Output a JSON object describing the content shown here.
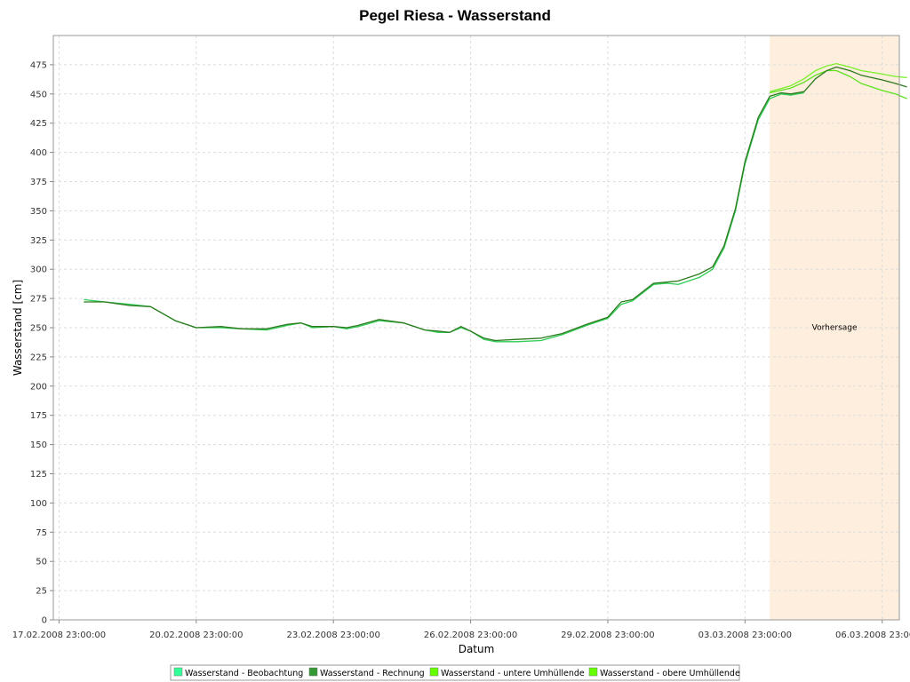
{
  "chart_data": {
    "type": "line",
    "title": "Pegel Riesa - Wasserstand",
    "xlabel": "Datum",
    "ylabel": "Wasserstand [cm]",
    "ylim": [
      0,
      500
    ],
    "yticks": [
      0,
      25,
      50,
      75,
      100,
      125,
      150,
      175,
      200,
      225,
      250,
      275,
      300,
      325,
      350,
      375,
      400,
      425,
      450,
      475
    ],
    "xlim": [
      "2008-02-17T20:00",
      "2008-03-07T08:00"
    ],
    "xticks": [
      {
        "t": "2008-02-17T23:00",
        "label": "17.02.2008 23:00:00"
      },
      {
        "t": "2008-02-20T23:00",
        "label": "20.02.2008 23:00:00"
      },
      {
        "t": "2008-02-23T23:00",
        "label": "23.02.2008 23:00:00"
      },
      {
        "t": "2008-02-26T23:00",
        "label": "26.02.2008 23:00:00"
      },
      {
        "t": "2008-02-29T23:00",
        "label": "29.02.2008 23:00:00"
      },
      {
        "t": "2008-03-03T23:00",
        "label": "03.03.2008 23:00:00"
      },
      {
        "t": "2008-03-06T23:00",
        "label": "06.03.2008 23:00:00"
      }
    ],
    "grid": true,
    "legend_position": "bottom",
    "forecast_band": {
      "start": "2008-03-04T12:00",
      "end": "2008-03-07T12:00",
      "label": "Vorhersage",
      "color": "#fdeedd"
    },
    "series": [
      {
        "name": "Wasserstand - Beobachtung",
        "color": "#33ff99",
        "line_color": "#2ecc55",
        "points": [
          [
            "2008-02-18T12:00",
            274
          ],
          [
            "2008-02-18T23:00",
            272
          ],
          [
            "2008-02-19T12:00",
            270
          ],
          [
            "2008-02-19T23:00",
            268
          ],
          [
            "2008-02-20T12:00",
            256
          ],
          [
            "2008-02-20T23:00",
            250
          ],
          [
            "2008-02-21T12:00",
            250
          ],
          [
            "2008-02-21T23:00",
            249
          ],
          [
            "2008-02-22T12:00",
            248
          ],
          [
            "2008-02-22T23:00",
            252
          ],
          [
            "2008-02-23T06:00",
            254
          ],
          [
            "2008-02-23T12:00",
            250
          ],
          [
            "2008-02-23T23:00",
            251
          ],
          [
            "2008-02-24T06:00",
            249
          ],
          [
            "2008-02-24T12:00",
            251
          ],
          [
            "2008-02-24T23:00",
            256
          ],
          [
            "2008-02-25T12:00",
            254
          ],
          [
            "2008-02-25T23:00",
            248
          ],
          [
            "2008-02-26T06:00",
            246
          ],
          [
            "2008-02-26T12:00",
            246
          ],
          [
            "2008-02-26T18:00",
            250
          ],
          [
            "2008-02-26T23:00",
            247
          ],
          [
            "2008-02-27T06:00",
            240
          ],
          [
            "2008-02-27T12:00",
            238
          ],
          [
            "2008-02-27T23:00",
            238
          ],
          [
            "2008-02-28T12:00",
            239
          ],
          [
            "2008-02-28T23:00",
            244
          ],
          [
            "2008-02-29T12:00",
            252
          ],
          [
            "2008-02-29T23:00",
            258
          ],
          [
            "2008-03-01T06:00",
            270
          ],
          [
            "2008-03-01T12:00",
            273
          ],
          [
            "2008-03-01T23:00",
            287
          ],
          [
            "2008-03-02T06:00",
            288
          ],
          [
            "2008-03-02T12:00",
            287
          ],
          [
            "2008-03-02T23:00",
            293
          ],
          [
            "2008-03-03T06:00",
            300
          ],
          [
            "2008-03-03T12:00",
            318
          ],
          [
            "2008-03-03T18:00",
            350
          ],
          [
            "2008-03-03T23:00",
            390
          ],
          [
            "2008-03-04T06:00",
            428
          ],
          [
            "2008-03-04T12:00",
            446
          ],
          [
            "2008-03-04T18:00",
            450
          ],
          [
            "2008-03-04T23:00",
            449
          ],
          [
            "2008-03-05T06:00",
            451
          ]
        ]
      },
      {
        "name": "Wasserstand - Rechnung",
        "color": "#339933",
        "line_color": "#2d7a1e",
        "points": [
          [
            "2008-02-18T12:00",
            272
          ],
          [
            "2008-02-18T23:00",
            272
          ],
          [
            "2008-02-19T12:00",
            269
          ],
          [
            "2008-02-19T23:00",
            268
          ],
          [
            "2008-02-20T12:00",
            256
          ],
          [
            "2008-02-20T23:00",
            250
          ],
          [
            "2008-02-21T12:00",
            251
          ],
          [
            "2008-02-21T23:00",
            249
          ],
          [
            "2008-02-22T12:00",
            249
          ],
          [
            "2008-02-22T23:00",
            253
          ],
          [
            "2008-02-23T06:00",
            254
          ],
          [
            "2008-02-23T12:00",
            251
          ],
          [
            "2008-02-23T23:00",
            251
          ],
          [
            "2008-02-24T06:00",
            250
          ],
          [
            "2008-02-24T12:00",
            252
          ],
          [
            "2008-02-24T23:00",
            257
          ],
          [
            "2008-02-25T12:00",
            254
          ],
          [
            "2008-02-25T23:00",
            248
          ],
          [
            "2008-02-26T06:00",
            247
          ],
          [
            "2008-02-26T12:00",
            246
          ],
          [
            "2008-02-26T18:00",
            251
          ],
          [
            "2008-02-26T23:00",
            247
          ],
          [
            "2008-02-27T06:00",
            241
          ],
          [
            "2008-02-27T12:00",
            239
          ],
          [
            "2008-02-27T23:00",
            240
          ],
          [
            "2008-02-28T12:00",
            241
          ],
          [
            "2008-02-28T23:00",
            245
          ],
          [
            "2008-02-29T12:00",
            253
          ],
          [
            "2008-02-29T23:00",
            259
          ],
          [
            "2008-03-01T06:00",
            272
          ],
          [
            "2008-03-01T12:00",
            274
          ],
          [
            "2008-03-01T23:00",
            288
          ],
          [
            "2008-03-02T06:00",
            289
          ],
          [
            "2008-03-02T12:00",
            290
          ],
          [
            "2008-03-02T23:00",
            296
          ],
          [
            "2008-03-03T06:00",
            302
          ],
          [
            "2008-03-03T12:00",
            320
          ],
          [
            "2008-03-03T18:00",
            352
          ],
          [
            "2008-03-03T23:00",
            392
          ],
          [
            "2008-03-04T06:00",
            430
          ],
          [
            "2008-03-04T12:00",
            448
          ],
          [
            "2008-03-04T18:00",
            451
          ],
          [
            "2008-03-04T23:00",
            450
          ],
          [
            "2008-03-05T06:00",
            452
          ],
          [
            "2008-03-05T12:00",
            463
          ],
          [
            "2008-03-05T18:00",
            470
          ],
          [
            "2008-03-05T23:00",
            473
          ],
          [
            "2008-03-06T06:00",
            470
          ],
          [
            "2008-03-06T12:00",
            466
          ],
          [
            "2008-03-06T23:00",
            462
          ],
          [
            "2008-03-07T06:00",
            459
          ],
          [
            "2008-03-07T12:00",
            456
          ]
        ]
      },
      {
        "name": "Wasserstand - untere Umhüllende",
        "color": "#66ff00",
        "line_color": "#5fe020",
        "points": [
          [
            "2008-03-04T12:00",
            451
          ],
          [
            "2008-03-04T23:00",
            455
          ],
          [
            "2008-03-05T06:00",
            460
          ],
          [
            "2008-03-05T12:00",
            466
          ],
          [
            "2008-03-05T18:00",
            470
          ],
          [
            "2008-03-05T23:00",
            470
          ],
          [
            "2008-03-06T06:00",
            465
          ],
          [
            "2008-03-06T12:00",
            459
          ],
          [
            "2008-03-06T23:00",
            453
          ],
          [
            "2008-03-07T06:00",
            450
          ],
          [
            "2008-03-07T12:00",
            446
          ]
        ]
      },
      {
        "name": "Wasserstand - obere Umhüllende",
        "color": "#66ff00",
        "line_color": "#7bef2a",
        "points": [
          [
            "2008-03-04T12:00",
            452
          ],
          [
            "2008-03-04T23:00",
            457
          ],
          [
            "2008-03-05T06:00",
            463
          ],
          [
            "2008-03-05T12:00",
            470
          ],
          [
            "2008-03-05T18:00",
            474
          ],
          [
            "2008-03-05T23:00",
            476
          ],
          [
            "2008-03-06T06:00",
            473
          ],
          [
            "2008-03-06T12:00",
            470
          ],
          [
            "2008-03-06T23:00",
            467
          ],
          [
            "2008-03-07T06:00",
            465
          ],
          [
            "2008-03-07T12:00",
            464
          ]
        ]
      }
    ]
  }
}
